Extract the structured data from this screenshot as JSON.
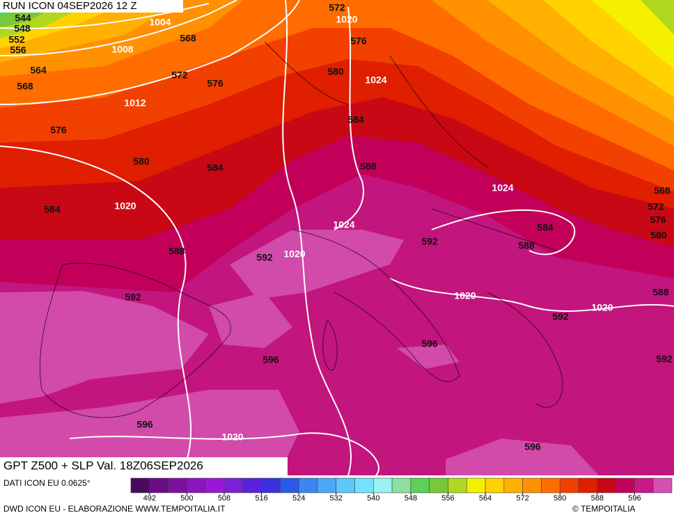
{
  "header": {
    "run": "RUN ICON 04SEP2026 12 Z"
  },
  "map": {
    "title": "GPT Z500 + SLP Val. 18Z06SEP2026",
    "contour_labels": [
      544,
      548,
      552,
      556,
      1004,
      572,
      1020,
      568,
      1008,
      576,
      564,
      572,
      576,
      580,
      1024,
      568,
      1012,
      584,
      576,
      580,
      584,
      588,
      1024,
      568,
      1020,
      572,
      584,
      576,
      584,
      1024,
      580,
      592,
      588,
      588,
      1020,
      592,
      592,
      588,
      1020,
      1020,
      592,
      596,
      596,
      592,
      596,
      1020,
      596
    ]
  },
  "colorbar": {
    "range": [
      488,
      604
    ],
    "ticks": [
      492,
      500,
      508,
      516,
      524,
      532,
      540,
      548,
      556,
      564,
      572,
      580,
      588,
      596
    ],
    "colors": [
      "#4a0a5c",
      "#6a0c84",
      "#7c10a0",
      "#8c14bc",
      "#9a18d4",
      "#7a20d8",
      "#5a22dc",
      "#3a30e0",
      "#2a5ae8",
      "#3c86f0",
      "#4ea6f6",
      "#60c6fc",
      "#74e2ff",
      "#98f2f0",
      "#8ee0a0",
      "#5cd058",
      "#78c83a",
      "#b0d820",
      "#f4f000",
      "#ffd200",
      "#ffb000",
      "#ff9000",
      "#ff6c00",
      "#f24000",
      "#e01e00",
      "#c80814",
      "#c2005a",
      "#c8188a",
      "#d650b4"
    ]
  },
  "footer": {
    "source": "DATI ICON EU 0.0625°",
    "credit": "DWD ICON EU - ELABORAZIONE WWW.TEMPOITALIA.IT",
    "copyright": "© TEMPOITALIA"
  }
}
